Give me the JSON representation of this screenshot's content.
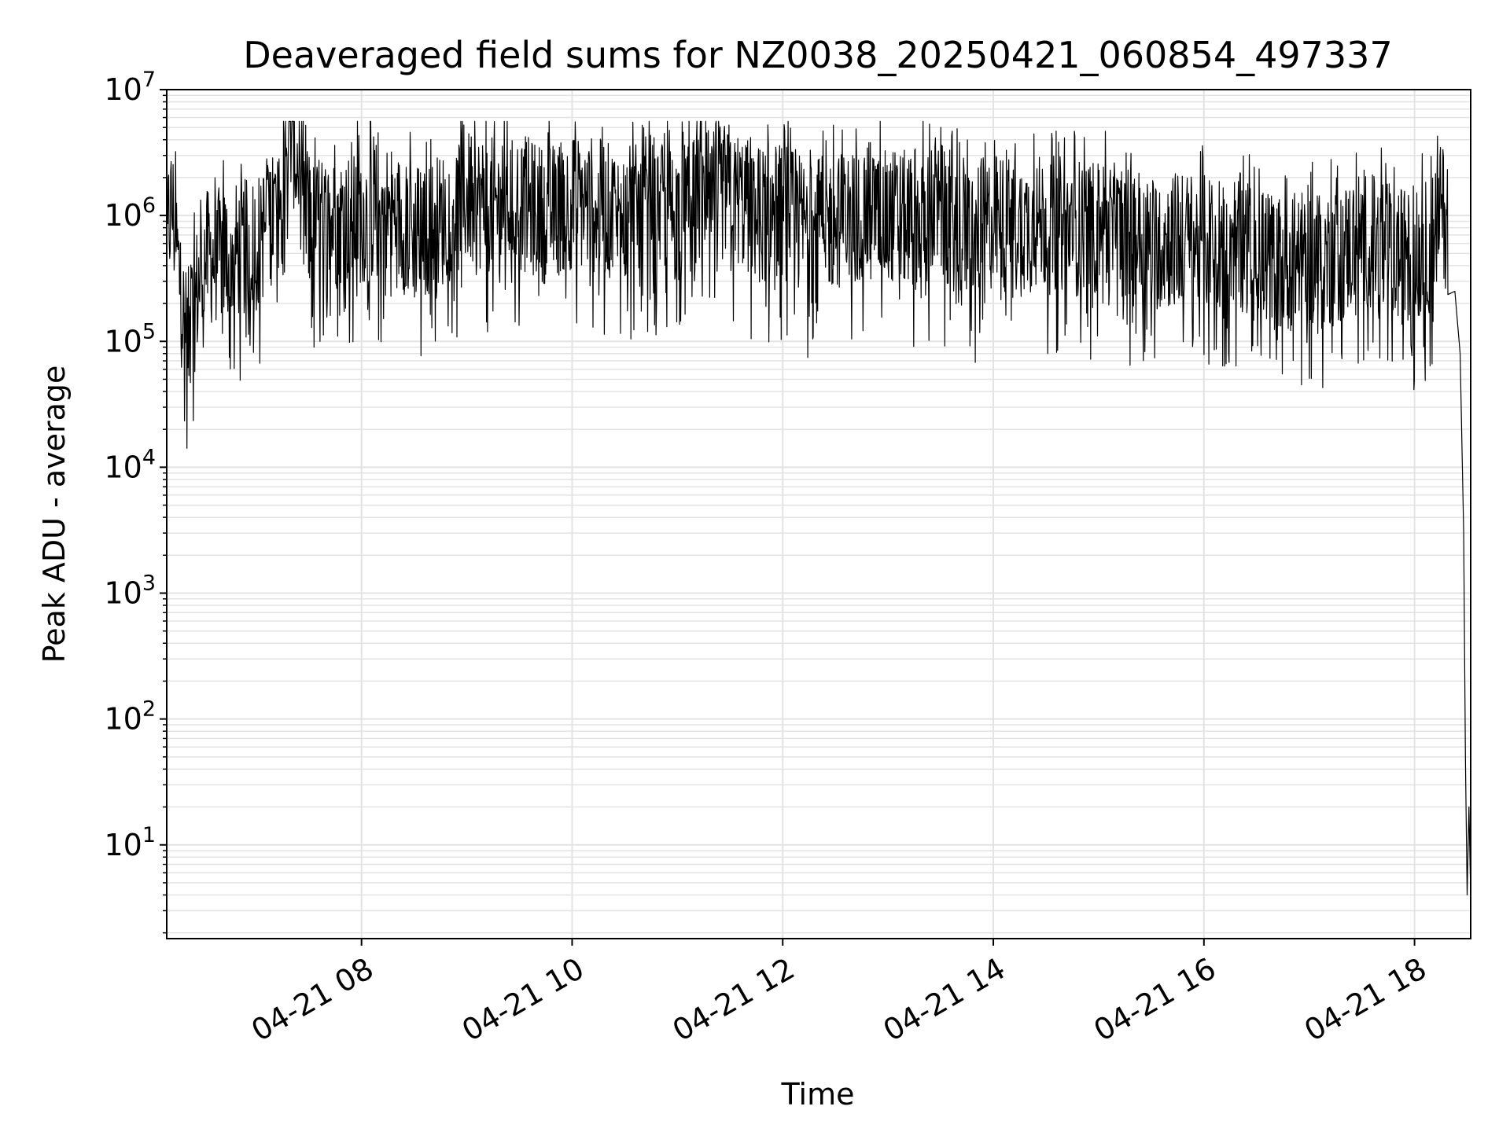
{
  "chart_data": {
    "type": "line",
    "title": "Deaveraged field sums for NZ0038_20250421_060854_497337",
    "xlabel": "Time",
    "ylabel": "Peak ADU - average",
    "yscale": "log",
    "ylim": [
      1.8,
      10000000
    ],
    "xlim": [
      "2025-04-21 06:09",
      "2025-04-21 18:32"
    ],
    "grid": true,
    "line_color": "#000000",
    "grid_color": "#e3e3e3",
    "x_ticks": [
      {
        "label": "04-21 08",
        "time": "2025-04-21 08:00"
      },
      {
        "label": "04-21 10",
        "time": "2025-04-21 10:00"
      },
      {
        "label": "04-21 12",
        "time": "2025-04-21 12:00"
      },
      {
        "label": "04-21 14",
        "time": "2025-04-21 14:00"
      },
      {
        "label": "04-21 16",
        "time": "2025-04-21 16:00"
      },
      {
        "label": "04-21 18",
        "time": "2025-04-21 18:00"
      }
    ],
    "y_ticks": [
      {
        "base": "10",
        "exp": "1",
        "value": 10
      },
      {
        "base": "10",
        "exp": "2",
        "value": 100
      },
      {
        "base": "10",
        "exp": "3",
        "value": 1000
      },
      {
        "base": "10",
        "exp": "4",
        "value": 10000
      },
      {
        "base": "10",
        "exp": "5",
        "value": 100000
      },
      {
        "base": "10",
        "exp": "6",
        "value": 1000000
      },
      {
        "base": "10",
        "exp": "7",
        "value": 10000000
      }
    ],
    "series": [
      {
        "x": [
          "2025-04-21 06:09",
          "2025-04-21 06:10",
          "2025-04-21 06:12",
          "2025-04-21 06:15",
          "2025-04-21 06:20",
          "2025-04-21 06:30",
          "2025-04-21 06:45",
          "2025-04-21 07:00",
          "2025-04-21 07:15",
          "2025-04-21 07:20",
          "2025-04-21 07:30",
          "2025-04-21 07:45",
          "2025-04-21 08:00",
          "2025-04-21 08:15",
          "2025-04-21 08:30",
          "2025-04-21 08:45",
          "2025-04-21 09:00",
          "2025-04-21 09:15",
          "2025-04-21 09:30",
          "2025-04-21 09:45",
          "2025-04-21 10:00",
          "2025-04-21 10:15",
          "2025-04-21 10:30",
          "2025-04-21 10:45",
          "2025-04-21 11:00",
          "2025-04-21 11:15",
          "2025-04-21 11:30",
          "2025-04-21 11:45",
          "2025-04-21 12:00",
          "2025-04-21 12:15",
          "2025-04-21 12:30",
          "2025-04-21 12:45",
          "2025-04-21 13:00",
          "2025-04-21 13:15",
          "2025-04-21 13:30",
          "2025-04-21 13:45",
          "2025-04-21 14:00",
          "2025-04-21 14:15",
          "2025-04-21 14:30",
          "2025-04-21 14:45",
          "2025-04-21 15:00",
          "2025-04-21 15:15",
          "2025-04-21 15:30",
          "2025-04-21 15:45",
          "2025-04-21 16:00",
          "2025-04-21 16:15",
          "2025-04-21 16:30",
          "2025-04-21 16:45",
          "2025-04-21 17:00",
          "2025-04-21 17:15",
          "2025-04-21 17:30",
          "2025-04-21 17:45",
          "2025-04-21 18:00",
          "2025-04-21 18:10",
          "2025-04-21 18:15",
          "2025-04-21 18:19",
          "2025-04-21 18:23",
          "2025-04-21 18:26",
          "2025-04-21 18:28",
          "2025-04-21 18:29",
          "2025-04-21 18:30",
          "2025-04-21 18:31",
          "2025-04-21 18:32"
        ],
        "y": [
          300000,
          900000,
          1200000,
          500000,
          90000,
          450000,
          500000,
          600000,
          1400000,
          5000000,
          800000,
          900000,
          1000000,
          1100000,
          700000,
          900000,
          1400000,
          1200000,
          1300000,
          1000000,
          1300000,
          1200000,
          900000,
          1300000,
          1000000,
          1300000,
          1600000,
          1000000,
          1100000,
          800000,
          900000,
          1000000,
          1000000,
          900000,
          1100000,
          700000,
          900000,
          800000,
          900000,
          800000,
          800000,
          700000,
          600000,
          650000,
          600000,
          700000,
          500000,
          400000,
          500000,
          450000,
          700000,
          500000,
          450000,
          600000,
          1200000,
          800000,
          250000,
          80000,
          3000,
          50,
          4,
          20,
          4
        ]
      }
    ]
  }
}
